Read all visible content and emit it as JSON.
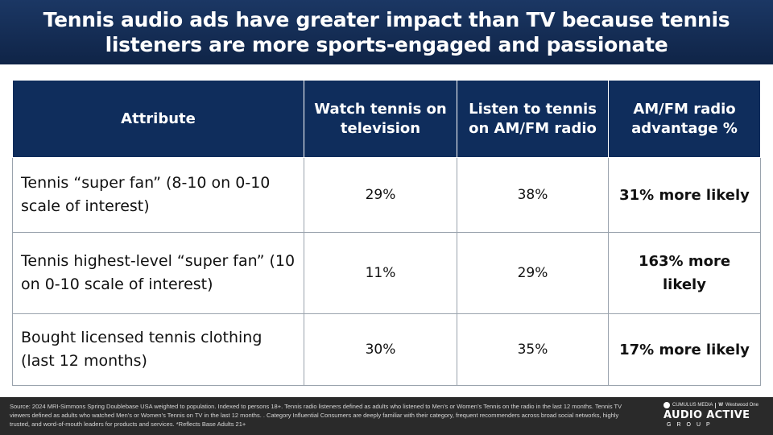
{
  "header": {
    "title": "Tennis audio ads have greater impact than TV because tennis listeners are more sports-engaged and passionate"
  },
  "table": {
    "columns": [
      "Attribute",
      "Watch tennis on television",
      "Listen to tennis on AM/FM radio",
      "AM/FM radio advantage %"
    ],
    "rows": [
      {
        "attribute": "Tennis “super fan” (8-10 on 0-10 scale of interest)",
        "tv": "29%",
        "radio": "38%",
        "advantage": "31% more likely"
      },
      {
        "attribute": "Tennis highest-level “super fan” (10 on 0-10 scale of interest)",
        "tv": "11%",
        "radio": "29%",
        "advantage": "163% more likely"
      },
      {
        "attribute": "Bought licensed tennis clothing (last 12 months)",
        "tv": "30%",
        "radio": "35%",
        "advantage": "17% more likely"
      }
    ]
  },
  "footer": {
    "source": "Source: 2024 MRI-Simmons Spring Doublebase USA weighted to population. Indexed to persons 18+. Tennis radio listeners defined as adults who listened to Men’s or Women’s Tennis on the radio in the last 12 months. Tennis TV viewers defined as adults who watched Men’s or Women’s Tennis on TV in the last 12 months. . Category Influential Consumers are deeply familiar with their category, frequent recommenders across broad social networks, highly trusted, and word-of-mouth leaders for products and services. *Reflects Base Adults 21+"
  },
  "logo": {
    "partner_left": "CUMULUS MEDIA",
    "partner_right": "Westwood One",
    "name": "AUDIO ACTIVE",
    "group": "GROUP"
  }
}
